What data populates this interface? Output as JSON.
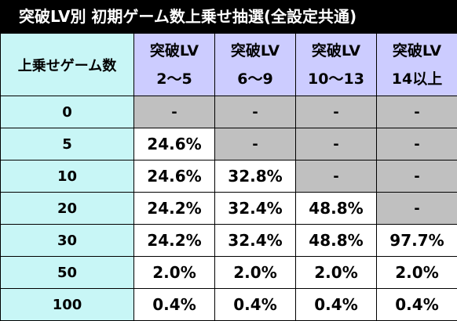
{
  "title": "突破LV別 初期ゲーム数上乗せ抽選(全設定共通)",
  "table": {
    "corner_label": "上乗せゲーム数",
    "columns": [
      {
        "line1": "突破LV",
        "line2": "2〜5"
      },
      {
        "line1": "突破LV",
        "line2": "6〜9"
      },
      {
        "line1": "突破LV",
        "line2": "10〜13"
      },
      {
        "line1": "突破LV",
        "line2": "14以上"
      }
    ],
    "rows": [
      {
        "label": "0",
        "cells": [
          {
            "v": "-",
            "na": true
          },
          {
            "v": "-",
            "na": true
          },
          {
            "v": "-",
            "na": true
          },
          {
            "v": "-",
            "na": true
          }
        ]
      },
      {
        "label": "5",
        "cells": [
          {
            "v": "24.6%",
            "na": false
          },
          {
            "v": "-",
            "na": true
          },
          {
            "v": "-",
            "na": true
          },
          {
            "v": "-",
            "na": true
          }
        ]
      },
      {
        "label": "10",
        "cells": [
          {
            "v": "24.6%",
            "na": false
          },
          {
            "v": "32.8%",
            "na": false
          },
          {
            "v": "-",
            "na": true
          },
          {
            "v": "-",
            "na": true
          }
        ]
      },
      {
        "label": "20",
        "cells": [
          {
            "v": "24.2%",
            "na": false
          },
          {
            "v": "32.4%",
            "na": false
          },
          {
            "v": "48.8%",
            "na": false
          },
          {
            "v": "-",
            "na": true
          }
        ]
      },
      {
        "label": "30",
        "cells": [
          {
            "v": "24.2%",
            "na": false
          },
          {
            "v": "32.4%",
            "na": false
          },
          {
            "v": "48.8%",
            "na": false
          },
          {
            "v": "97.7%",
            "na": false
          }
        ]
      },
      {
        "label": "50",
        "cells": [
          {
            "v": "2.0%",
            "na": false
          },
          {
            "v": "2.0%",
            "na": false
          },
          {
            "v": "2.0%",
            "na": false
          },
          {
            "v": "2.0%",
            "na": false
          }
        ]
      },
      {
        "label": "100",
        "cells": [
          {
            "v": "0.4%",
            "na": false
          },
          {
            "v": "0.4%",
            "na": false
          },
          {
            "v": "0.4%",
            "na": false
          },
          {
            "v": "0.4%",
            "na": false
          }
        ]
      }
    ]
  },
  "colors": {
    "title_bg": "#000000",
    "title_fg": "#ffffff",
    "header_col_bg": "#ccccff",
    "row_label_bg": "#c8f6f6",
    "na_bg": "#c0c0c0",
    "value_bg": "#ffffff"
  }
}
